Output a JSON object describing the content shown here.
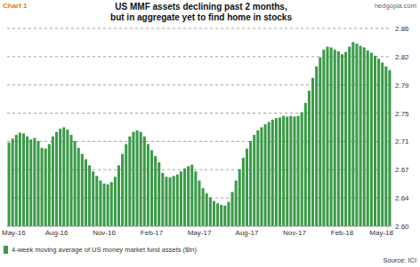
{
  "chart_data": {
    "type": "bar",
    "title": "US MMF assets declining past 2 months, but in aggregate yet to find home in stocks",
    "annotations": [
      "Chart 1",
      "hedgopia.com",
      "Source: ICI"
    ],
    "categories": [
      "May-16",
      null,
      null,
      null,
      null,
      null,
      null,
      null,
      null,
      null,
      null,
      null,
      null,
      "Aug-16",
      null,
      null,
      null,
      null,
      null,
      null,
      null,
      null,
      null,
      null,
      null,
      null,
      "Nov-16",
      null,
      null,
      null,
      null,
      null,
      null,
      null,
      null,
      null,
      null,
      null,
      null,
      "Feb-17",
      null,
      null,
      null,
      null,
      null,
      null,
      null,
      null,
      null,
      null,
      null,
      null,
      "May-17",
      null,
      null,
      null,
      null,
      null,
      null,
      null,
      null,
      null,
      null,
      null,
      null,
      "Aug-17",
      null,
      null,
      null,
      null,
      null,
      null,
      null,
      null,
      null,
      null,
      null,
      null,
      "Nov-17",
      null,
      null,
      null,
      null,
      null,
      null,
      null,
      null,
      null,
      null,
      null,
      null,
      "Feb-18",
      null,
      null,
      null,
      null,
      null,
      null,
      null,
      null,
      null,
      null,
      null,
      null,
      "May-18"
    ],
    "series": [
      {
        "name": "4-week moving average of US money market fund assets ($tn)",
        "color": "#3a9a48",
        "values": [
          2.71,
          2.715,
          2.72,
          2.723,
          2.722,
          2.718,
          2.714,
          2.716,
          2.712,
          2.703,
          2.702,
          2.708,
          2.718,
          2.724,
          2.728,
          2.73,
          2.727,
          2.72,
          2.712,
          2.703,
          2.695,
          2.688,
          2.68,
          2.672,
          2.666,
          2.66,
          2.656,
          2.655,
          2.658,
          2.665,
          2.68,
          2.695,
          2.708,
          2.718,
          2.724,
          2.726,
          2.724,
          2.718,
          2.708,
          2.7,
          2.692,
          2.684,
          2.67,
          2.665,
          2.664,
          2.666,
          2.668,
          2.672,
          2.676,
          2.679,
          2.681,
          2.672,
          2.66,
          2.65,
          2.643,
          2.638,
          2.633,
          2.63,
          2.628,
          2.627,
          2.632,
          2.645,
          2.66,
          2.675,
          2.69,
          2.702,
          2.712,
          2.72,
          2.726,
          2.73,
          2.734,
          2.737,
          2.74,
          2.742,
          2.743,
          2.745,
          2.744,
          2.745,
          2.744,
          2.745,
          2.75,
          2.762,
          2.778,
          2.795,
          2.81,
          2.822,
          2.832,
          2.836,
          2.835,
          2.832,
          2.83,
          2.826,
          2.829,
          2.836,
          2.842,
          2.84,
          2.837,
          2.835,
          2.831,
          2.828,
          2.824,
          2.82,
          2.815,
          2.81,
          2.805
        ]
      }
    ],
    "ylim": [
      2.6,
      2.86
    ],
    "yticks": [
      {
        "value": 2.6,
        "label": "2.60"
      },
      {
        "value": 2.6371,
        "label": "2.64"
      },
      {
        "value": 2.6743,
        "label": "2.67"
      },
      {
        "value": 2.7114,
        "label": "2.71"
      },
      {
        "value": 2.7486,
        "label": "2.75"
      },
      {
        "value": 2.7857,
        "label": "2.79"
      },
      {
        "value": 2.8229,
        "label": "2.82"
      },
      {
        "value": 2.86,
        "label": "2.86"
      }
    ],
    "grid": true,
    "legend": "bottom-left"
  }
}
